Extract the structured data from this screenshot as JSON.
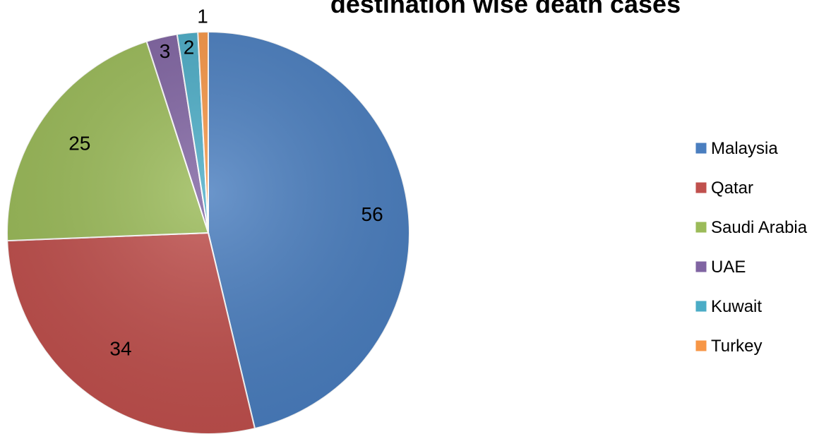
{
  "chart_data": {
    "type": "pie",
    "title": "destination wise death cases",
    "categories": [
      "Malaysia",
      "Qatar",
      "Saudi Arabia",
      "UAE",
      "Kuwait",
      "Turkey"
    ],
    "values": [
      56,
      34,
      25,
      3,
      2,
      1
    ],
    "colors": [
      "#4a7ebf",
      "#c0504d",
      "#9bbb59",
      "#8064a2",
      "#4bacc6",
      "#f79646"
    ],
    "start_angle_deg": 0,
    "direction": "clockwise",
    "legend_position": "right",
    "data_labels": "values"
  }
}
